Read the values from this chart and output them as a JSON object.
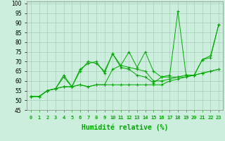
{
  "xlabel": "Humidité relative (%)",
  "bg_color": "#cceedd",
  "grid_color": "#aaccbb",
  "line_color": "#00aa00",
  "xlim": [
    -0.5,
    23.5
  ],
  "ylim": [
    45,
    101
  ],
  "yticks": [
    45,
    50,
    55,
    60,
    65,
    70,
    75,
    80,
    85,
    90,
    95,
    100
  ],
  "xticks": [
    0,
    1,
    2,
    3,
    4,
    5,
    6,
    7,
    8,
    9,
    10,
    11,
    12,
    13,
    14,
    15,
    16,
    17,
    18,
    19,
    20,
    21,
    22,
    23
  ],
  "lines": [
    [
      52,
      52,
      55,
      56,
      63,
      57,
      66,
      69,
      70,
      64,
      74,
      67,
      66,
      63,
      62,
      59,
      62,
      63,
      96,
      63,
      63,
      71,
      72,
      89
    ],
    [
      52,
      52,
      55,
      56,
      62,
      57,
      65,
      70,
      69,
      65,
      74,
      68,
      75,
      67,
      75,
      65,
      62,
      62,
      62,
      62,
      63,
      71,
      73,
      89
    ],
    [
      52,
      52,
      55,
      56,
      57,
      57,
      58,
      57,
      58,
      58,
      58,
      58,
      58,
      58,
      58,
      58,
      58,
      60,
      61,
      62,
      63,
      64,
      65,
      66
    ],
    [
      52,
      52,
      55,
      56,
      57,
      57,
      58,
      57,
      58,
      58,
      66,
      68,
      67,
      66,
      65,
      60,
      60,
      61,
      62,
      63,
      63,
      64,
      65,
      66
    ]
  ]
}
